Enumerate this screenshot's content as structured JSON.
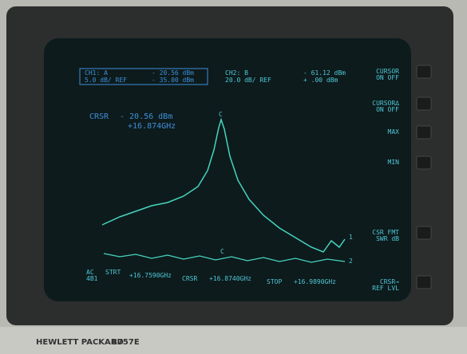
{
  "screen": {
    "ch1": {
      "label": "CH1: A",
      "reading": "- 20.56 dBm",
      "scale": "5.0 dB/ REF",
      "ref": "- 35.00 dBm"
    },
    "ch2": {
      "label": "CH2: B",
      "reading": "- 61.12 dBm",
      "scale": "20.0 dB/ REF",
      "ref": "+ .00 dBm"
    },
    "cursor": {
      "label": "CRSR",
      "level": "- 20.56 dBm",
      "freq": "+16.874GHz"
    },
    "footer": {
      "mode": "AC",
      "code": "4B1",
      "start_label": "STRT",
      "start": "+16.7590GHz",
      "crsr_label": "CRSR",
      "crsr": "+16.8740GHz",
      "stop_label": "STOP",
      "stop": "+16.9890GHz"
    },
    "markers": {
      "c": "C",
      "one": "1",
      "two": "2"
    }
  },
  "softkeys": [
    {
      "title": "CURSOR",
      "state": "ON OFF"
    },
    {
      "title": "CURSOR∆",
      "state": "ON OFF"
    },
    {
      "title": "MAX"
    },
    {
      "title": "MIN"
    },
    {
      "title": "CSR FMT",
      "state": "SWR dB"
    },
    {
      "title": "CRSR→",
      "state": "REF LVL"
    }
  ],
  "bezel": {
    "brand": "HEWLETT PACKARD",
    "model": "8757E"
  }
}
